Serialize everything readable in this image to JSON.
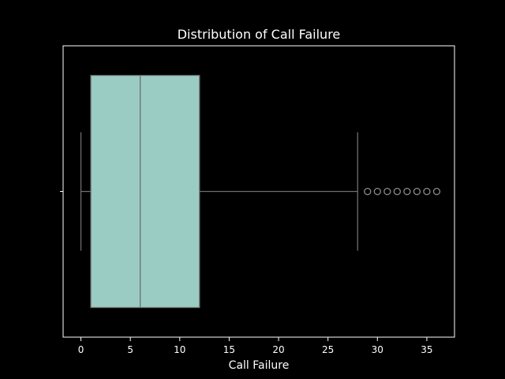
{
  "chart_data": {
    "type": "box",
    "title": "Distribution of Call Failure",
    "xlabel": "Call Failure",
    "ylabel": "",
    "xlim": [
      -1.8,
      37.8
    ],
    "xticks": [
      0,
      5,
      10,
      15,
      20,
      25,
      30,
      35
    ],
    "box": {
      "whisker_low": 0,
      "q1": 1,
      "median": 6,
      "q3": 12,
      "whisker_high": 28
    },
    "outliers": [
      29,
      30,
      31,
      32,
      33,
      34,
      35,
      36
    ],
    "grid": false,
    "colors": {
      "background": "#000000",
      "box_fill": "#9ACCC3",
      "line": "#6e6e6e",
      "frame": "#ffffff",
      "text": "#ffffff"
    }
  }
}
